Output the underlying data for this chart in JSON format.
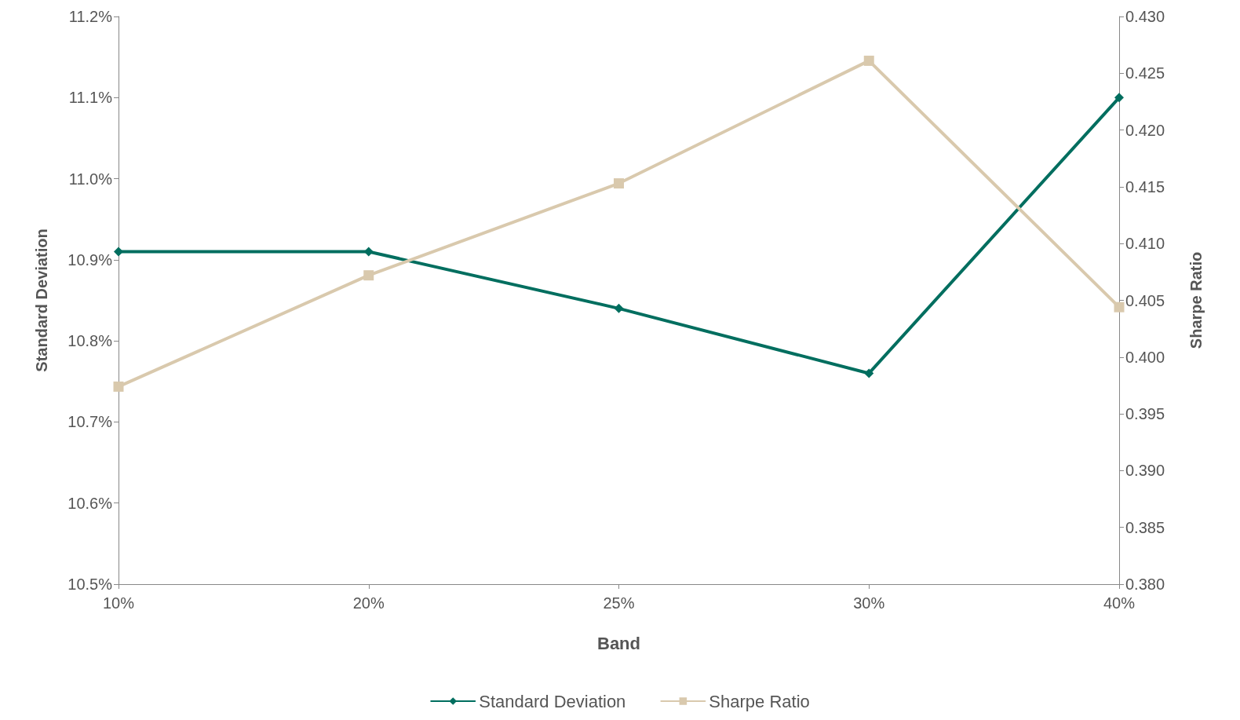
{
  "chart_data": {
    "type": "line",
    "xlabel": "Band",
    "ylabel": "Standard Deviation",
    "y2label": "Sharpe Ratio",
    "categories": [
      "10%",
      "20%",
      "25%",
      "30%",
      "40%"
    ],
    "series": [
      {
        "name": "Standard Deviation",
        "color": "#006e5f",
        "marker": "diamond",
        "values": [
          10.91,
          10.91,
          10.84,
          10.76,
          11.1
        ]
      },
      {
        "name": "Sharpe Ratio",
        "color": "#d9c9ad",
        "marker": "square",
        "axis": "y2",
        "values": [
          0.3974,
          0.4072,
          0.4153,
          0.4261,
          0.4044
        ]
      }
    ],
    "ylim": [
      10.5,
      11.2
    ],
    "yticks": [
      {
        "value": 10.5,
        "label": "10.5%"
      },
      {
        "value": 10.6,
        "label": "10.6%"
      },
      {
        "value": 10.7,
        "label": "10.7%"
      },
      {
        "value": 10.8,
        "label": "10.8%"
      },
      {
        "value": 10.9,
        "label": "10.9%"
      },
      {
        "value": 11.0,
        "label": "11.0%"
      },
      {
        "value": 11.1,
        "label": "11.1%"
      },
      {
        "value": 11.2,
        "label": "11.2%"
      }
    ],
    "y2lim": [
      0.38,
      0.43
    ],
    "y2ticks": [
      {
        "value": 0.38,
        "label": "0.380"
      },
      {
        "value": 0.385,
        "label": "0.385"
      },
      {
        "value": 0.39,
        "label": "0.390"
      },
      {
        "value": 0.395,
        "label": "0.395"
      },
      {
        "value": 0.4,
        "label": "0.400"
      },
      {
        "value": 0.405,
        "label": "0.405"
      },
      {
        "value": 0.41,
        "label": "0.410"
      },
      {
        "value": 0.415,
        "label": "0.415"
      },
      {
        "value": 0.42,
        "label": "0.420"
      },
      {
        "value": 0.425,
        "label": "0.425"
      },
      {
        "value": 0.43,
        "label": "0.430"
      }
    ],
    "grid": false,
    "legend": "bottom",
    "line_style": "solid"
  }
}
